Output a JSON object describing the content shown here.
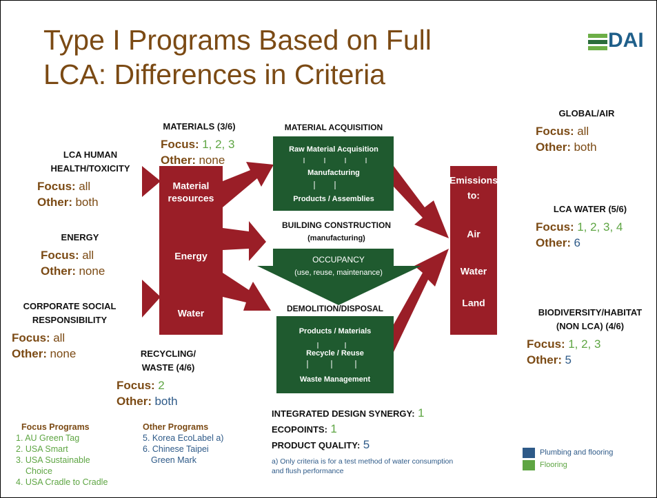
{
  "title": [
    "Type I Programs Based on Full",
    "LCA: Differences in Criteria"
  ],
  "logo": "DAI",
  "criteria": [
    {
      "heading": [
        "MATERIALS (3/6)"
      ],
      "focus_label": "Focus:",
      "focus": "1, 2, 3",
      "other_label": "Other:",
      "other": "none"
    },
    {
      "heading": [
        "LCA HUMAN",
        "HEALTH/TOXICITY"
      ],
      "focus_label": "Focus:",
      "focus": "all",
      "other_label": "Other:",
      "other": "both"
    },
    {
      "heading": [
        "ENERGY"
      ],
      "focus_label": "Focus:",
      "focus": "all",
      "other_label": "Other:",
      "other": "none"
    },
    {
      "heading": [
        "CORPORATE SOCIAL",
        "RESPONSIBILITY"
      ],
      "focus_label": "Focus:",
      "focus": "all",
      "other_label": "Other:",
      "other": "none"
    },
    {
      "heading": [
        "RECYCLING/",
        "WASTE (4/6)"
      ],
      "focus_label": "Focus:",
      "focus": "2",
      "other_label": "Other:",
      "other": "both"
    },
    {
      "heading": [
        "GLOBAL/AIR"
      ],
      "focus_label": "Focus:",
      "focus": "all",
      "other_label": "Other:",
      "other": "both"
    },
    {
      "heading": [
        "LCA WATER (5/6)"
      ],
      "focus_label": "Focus:",
      "focus": "1, 2, 3, 4",
      "other_label": "Other:",
      "other": "6"
    },
    {
      "heading": [
        "BIODIVERSITY/HABITAT",
        "(NON LCA)  (4/6)"
      ],
      "focus_label": "Focus:",
      "focus": "1, 2, 3",
      "other_label": "Other:",
      "other": "5"
    }
  ],
  "inline_criteria": [
    {
      "label": "INTEGRATED DESIGN SYNERGY:",
      "value": "1"
    },
    {
      "label": "ECOPOINTS:",
      "value": "1"
    },
    {
      "label": "PRODUCT QUALITY:",
      "value": "5"
    }
  ],
  "diagram": {
    "inputs": [
      "Material",
      "resources",
      "Energy",
      "Water"
    ],
    "acquisition": {
      "heading": "MATERIAL ACQUISITION",
      "steps": [
        "Raw Material Acquisition",
        "Manufacturing",
        "Products / Assemblies"
      ]
    },
    "construction": {
      "heading": "BUILDING CONSTRUCTION",
      "subheading": "(manufacturing)"
    },
    "occupancy": {
      "heading": "OCCUPANCY",
      "subheading": "(use, reuse, maintenance)"
    },
    "disposal": {
      "heading": "DEMOLITION/DISPOSAL",
      "steps": [
        "Products / Materials",
        "Recycle / Reuse",
        "Waste Management"
      ]
    },
    "outputs": [
      "Emissions",
      "to:",
      "Air",
      "Water",
      "Land"
    ]
  },
  "focus_programs": {
    "title": "Focus Programs",
    "items": [
      "1. AU Green Tag",
      "2. USA Smart",
      "3. USA Sustainable",
      "Choice",
      "4. USA Cradle to Cradle"
    ]
  },
  "other_programs": {
    "title": "Other Programs",
    "items": [
      "5. Korea EcoLabel a)",
      "6. Chinese Taipei",
      "Green Mark"
    ]
  },
  "footnote": [
    "a) Only criteria is for a test method of water consumption",
    "and flush performance"
  ],
  "color_legend": [
    "Plumbing and flooring",
    "Flooring"
  ]
}
